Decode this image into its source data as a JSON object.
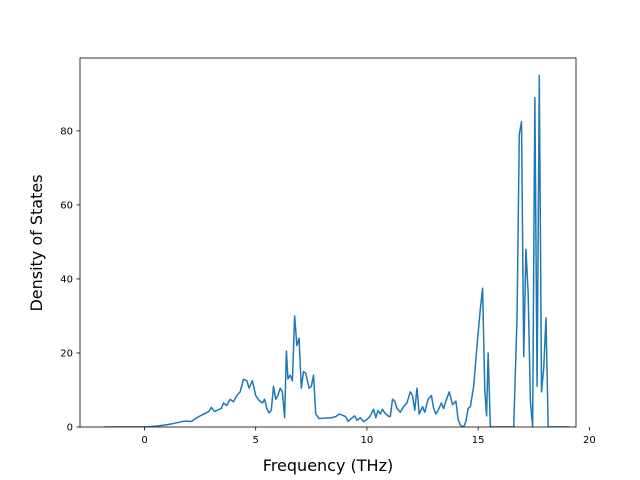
{
  "chart_data": {
    "type": "line",
    "title": "",
    "xlabel": "Frequency (THz)",
    "ylabel": "Density of States",
    "xlim": [
      -2.9,
      19.4
    ],
    "ylim": [
      0,
      99.7
    ],
    "xticks": [
      0,
      5,
      10,
      15,
      20
    ],
    "yticks": [
      0,
      20,
      40,
      60,
      80
    ],
    "grid": false,
    "legend": "none",
    "color": "#1f77b4",
    "series": [
      {
        "name": "",
        "points": [
          [
            -1.8,
            0
          ],
          [
            -1.0,
            0
          ],
          [
            -0.2,
            0
          ],
          [
            0.0,
            0
          ],
          [
            0.3,
            0.1
          ],
          [
            0.6,
            0.3
          ],
          [
            0.9,
            0.5
          ],
          [
            1.2,
            0.8
          ],
          [
            1.5,
            1.2
          ],
          [
            1.7,
            1.5
          ],
          [
            1.9,
            1.6
          ],
          [
            2.1,
            1.5
          ],
          [
            2.3,
            2.3
          ],
          [
            2.5,
            3.0
          ],
          [
            2.7,
            3.6
          ],
          [
            2.9,
            4.2
          ],
          [
            3.0,
            5.3
          ],
          [
            3.15,
            4.2
          ],
          [
            3.3,
            4.6
          ],
          [
            3.45,
            5.0
          ],
          [
            3.55,
            6.5
          ],
          [
            3.7,
            5.8
          ],
          [
            3.85,
            7.5
          ],
          [
            4.0,
            6.8
          ],
          [
            4.15,
            8.5
          ],
          [
            4.3,
            9.5
          ],
          [
            4.45,
            12.9
          ],
          [
            4.6,
            12.5
          ],
          [
            4.7,
            10.5
          ],
          [
            4.85,
            12.5
          ],
          [
            5.0,
            8.5
          ],
          [
            5.15,
            7.2
          ],
          [
            5.3,
            6.5
          ],
          [
            5.4,
            7.5
          ],
          [
            5.5,
            5.0
          ],
          [
            5.6,
            3.8
          ],
          [
            5.7,
            4.5
          ],
          [
            5.8,
            11.0
          ],
          [
            5.9,
            7.5
          ],
          [
            6.0,
            8.5
          ],
          [
            6.1,
            10.5
          ],
          [
            6.2,
            9.5
          ],
          [
            6.3,
            2.5
          ],
          [
            6.38,
            20.5
          ],
          [
            6.45,
            13.0
          ],
          [
            6.55,
            14.0
          ],
          [
            6.65,
            12.5
          ],
          [
            6.75,
            30.0
          ],
          [
            6.85,
            22.0
          ],
          [
            6.95,
            24.0
          ],
          [
            7.05,
            10.5
          ],
          [
            7.15,
            15.0
          ],
          [
            7.25,
            14.5
          ],
          [
            7.4,
            10.5
          ],
          [
            7.5,
            11.0
          ],
          [
            7.6,
            14.0
          ],
          [
            7.7,
            3.5
          ],
          [
            7.85,
            2.3
          ],
          [
            8.1,
            2.4
          ],
          [
            8.4,
            2.5
          ],
          [
            8.6,
            2.8
          ],
          [
            8.75,
            3.5
          ],
          [
            8.9,
            3.2
          ],
          [
            9.05,
            2.8
          ],
          [
            9.15,
            1.5
          ],
          [
            9.3,
            2.3
          ],
          [
            9.45,
            3.0
          ],
          [
            9.55,
            1.8
          ],
          [
            9.7,
            2.5
          ],
          [
            9.85,
            1.5
          ],
          [
            10.0,
            2.0
          ],
          [
            10.15,
            3.0
          ],
          [
            10.3,
            4.8
          ],
          [
            10.4,
            2.5
          ],
          [
            10.5,
            4.5
          ],
          [
            10.6,
            3.5
          ],
          [
            10.7,
            4.8
          ],
          [
            10.8,
            3.8
          ],
          [
            10.95,
            3.0
          ],
          [
            11.05,
            2.8
          ],
          [
            11.15,
            7.5
          ],
          [
            11.25,
            7.0
          ],
          [
            11.35,
            5.0
          ],
          [
            11.5,
            4.0
          ],
          [
            11.65,
            5.5
          ],
          [
            11.8,
            6.5
          ],
          [
            11.95,
            9.5
          ],
          [
            12.05,
            8.5
          ],
          [
            12.15,
            4.5
          ],
          [
            12.25,
            10.5
          ],
          [
            12.35,
            3.5
          ],
          [
            12.5,
            5.5
          ],
          [
            12.6,
            4.0
          ],
          [
            12.75,
            7.5
          ],
          [
            12.9,
            8.5
          ],
          [
            13.0,
            5.0
          ],
          [
            13.1,
            3.5
          ],
          [
            13.2,
            4.5
          ],
          [
            13.35,
            6.5
          ],
          [
            13.45,
            5.0
          ],
          [
            13.55,
            7.0
          ],
          [
            13.7,
            9.5
          ],
          [
            13.85,
            6.0
          ],
          [
            14.0,
            7.0
          ],
          [
            14.1,
            2.0
          ],
          [
            14.2,
            0.5
          ],
          [
            14.35,
            0
          ],
          [
            14.45,
            1.5
          ],
          [
            14.55,
            5.0
          ],
          [
            14.65,
            5.5
          ],
          [
            14.8,
            11.0
          ],
          [
            14.95,
            22.0
          ],
          [
            15.1,
            32.0
          ],
          [
            15.2,
            37.5
          ],
          [
            15.3,
            10.0
          ],
          [
            15.38,
            3.0
          ],
          [
            15.45,
            20.0
          ],
          [
            15.55,
            0
          ],
          [
            16.0,
            0
          ],
          [
            16.6,
            0
          ],
          [
            16.75,
            30.0
          ],
          [
            16.85,
            79.0
          ],
          [
            16.95,
            82.5
          ],
          [
            17.05,
            19.0
          ],
          [
            17.15,
            48.0
          ],
          [
            17.25,
            36.0
          ],
          [
            17.35,
            7.0
          ],
          [
            17.45,
            0
          ],
          [
            17.55,
            89.0
          ],
          [
            17.65,
            11.0
          ],
          [
            17.75,
            95.0
          ],
          [
            17.85,
            9.5
          ],
          [
            17.95,
            16.0
          ],
          [
            18.05,
            29.5
          ],
          [
            18.15,
            0
          ],
          [
            18.5,
            0
          ],
          [
            19.1,
            0
          ]
        ]
      }
    ]
  }
}
